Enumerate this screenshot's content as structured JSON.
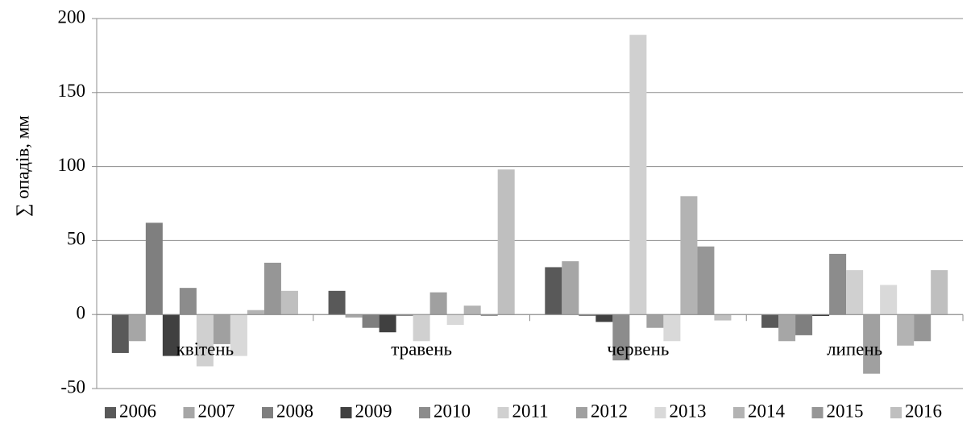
{
  "chart_data": {
    "type": "bar",
    "y_label": "∑ опадів, мм",
    "categories": [
      "квітень",
      "травень",
      "червень",
      "липень"
    ],
    "series": [
      {
        "name": "2006",
        "color": "#595959",
        "values": [
          -26,
          16,
          32,
          -9
        ]
      },
      {
        "name": "2007",
        "color": "#a6a6a6",
        "values": [
          -18,
          -2,
          36,
          -18
        ]
      },
      {
        "name": "2008",
        "color": "#7f7f7f",
        "values": [
          62,
          -9,
          -1,
          -14
        ]
      },
      {
        "name": "2009",
        "color": "#404040",
        "values": [
          -28,
          -12,
          -5,
          -1
        ]
      },
      {
        "name": "2010",
        "color": "#8c8c8c",
        "values": [
          18,
          -1,
          -31,
          41
        ]
      },
      {
        "name": "2011",
        "color": "#d0d0d0",
        "values": [
          -35,
          -18,
          189,
          30
        ]
      },
      {
        "name": "2012",
        "color": "#a0a0a0",
        "values": [
          -20,
          15,
          -9,
          -40
        ]
      },
      {
        "name": "2013",
        "color": "#d9d9d9",
        "values": [
          -28,
          -7,
          -18,
          20
        ]
      },
      {
        "name": "2014",
        "color": "#b3b3b3",
        "values": [
          3,
          6,
          80,
          -21
        ]
      },
      {
        "name": "2015",
        "color": "#969696",
        "values": [
          35,
          -1,
          46,
          -18
        ]
      },
      {
        "name": "2016",
        "color": "#bfbfbf",
        "values": [
          16,
          98,
          -4,
          30
        ]
      }
    ],
    "ylim": [
      -50,
      200
    ],
    "yticks": [
      -50,
      0,
      50,
      100,
      150,
      200
    ],
    "grid": true,
    "legend": "bottom"
  }
}
